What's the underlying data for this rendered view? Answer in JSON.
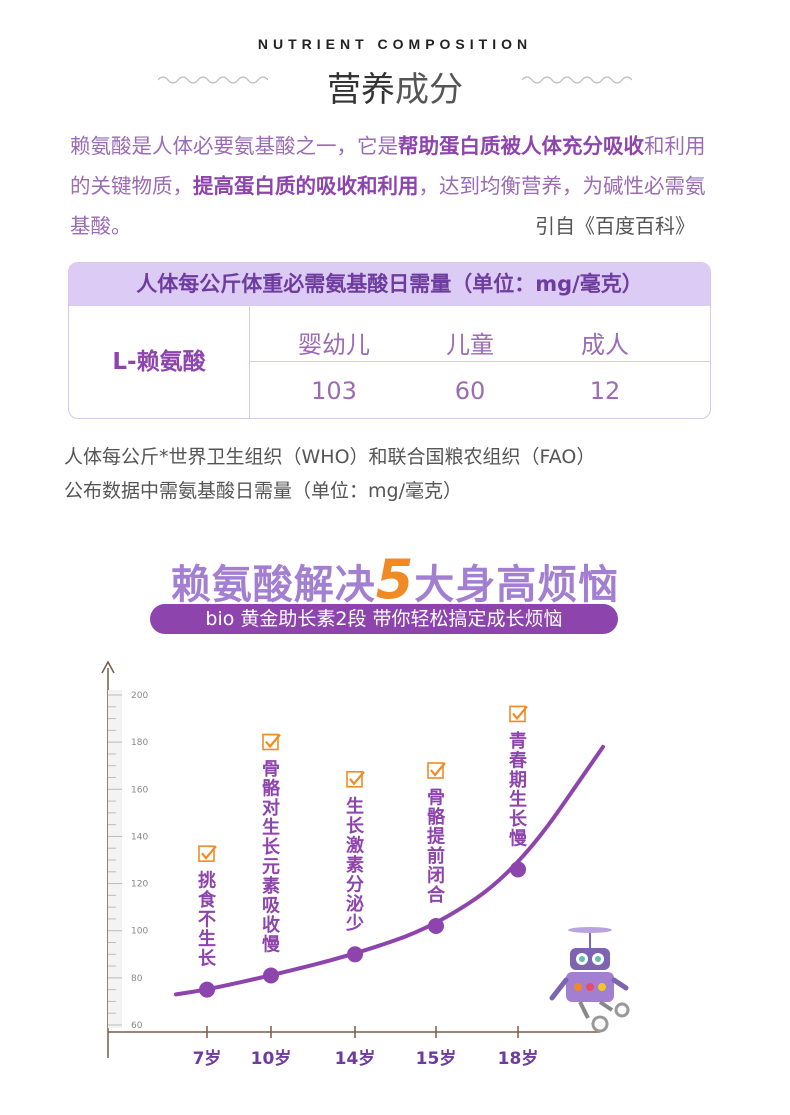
{
  "header": {
    "en_title": "NUTRIENT COMPOSITION",
    "cn_title_dark": "营养",
    "cn_title_light": "成分"
  },
  "intro": {
    "p1": "赖氨酸是人体必要氨基酸之一，它是",
    "b1": "帮助蛋白质被人体充分吸收",
    "p2": "和利用的关键物质，",
    "b2": "提高蛋白质的吸收和利用",
    "p3": "，达到均衡营养，为碱性必需氨基酸。",
    "citation": "引自《百度百科》"
  },
  "table": {
    "header": "人体每公斤体重必需氨基酸日需量（单位：mg/毫克）",
    "row_label": "L-赖氨酸",
    "columns": [
      "婴幼儿",
      "儿童",
      "成人"
    ],
    "values": [
      "103",
      "60",
      "12"
    ]
  },
  "note": {
    "line1": "人体每公斤*世界卫生组织（WHO）和联合国粮农组织（FAO）",
    "line2": "公布数据中需氨基酸日需量（单位：mg/毫克）"
  },
  "section2": {
    "title_before": "赖氨酸解决",
    "title_num": "5",
    "title_after": "大身高烦恼",
    "subtitle": "bio 黄金助长素2段 带你轻松搞定成长烦恼"
  },
  "colors": {
    "purple": "#8e44ad",
    "light_purple": "#a37fd1",
    "orange": "#f08a24"
  },
  "chart_data": {
    "type": "line",
    "x_categories": [
      "7岁",
      "10岁",
      "14岁",
      "15岁",
      "18岁"
    ],
    "y_ticks": [
      "200",
      "180",
      "160",
      "140",
      "120",
      "100",
      "80",
      "60"
    ],
    "ylim": [
      60,
      200
    ],
    "values": [
      75,
      81,
      90,
      102,
      126
    ],
    "annotations": [
      "挑食不生长",
      "骨骼对生长元素吸收慢",
      "生长激素分泌少",
      "骨骼提前闭合",
      "青春期生长慢"
    ]
  }
}
